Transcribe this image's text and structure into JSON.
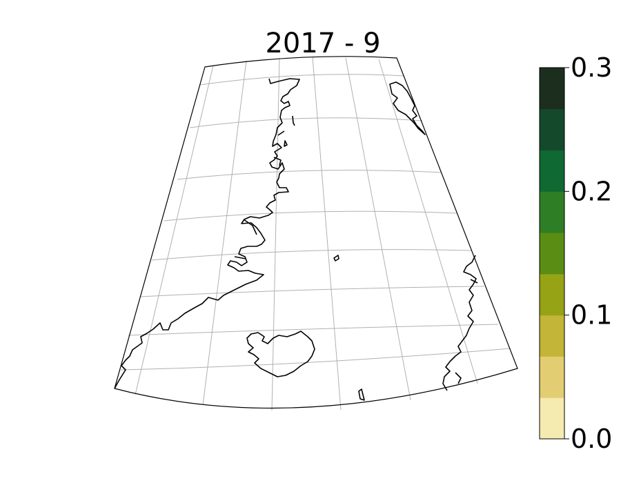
{
  "title": "2017 - 9",
  "colorbar": {
    "min": 0.0,
    "max": 0.3,
    "ticks": [
      {
        "value": 0.0,
        "label": "0.0"
      },
      {
        "value": 0.1,
        "label": "0.1"
      },
      {
        "value": 0.2,
        "label": "0.2"
      },
      {
        "value": 0.3,
        "label": "0.3"
      }
    ],
    "bins": [
      {
        "from": 0.0,
        "to": 0.0333,
        "color": "#f5ebb0"
      },
      {
        "from": 0.0333,
        "to": 0.0667,
        "color": "#e2cd72"
      },
      {
        "from": 0.0667,
        "to": 0.1,
        "color": "#c2b538"
      },
      {
        "from": 0.1,
        "to": 0.1333,
        "color": "#95a315"
      },
      {
        "from": 0.1333,
        "to": 0.1667,
        "color": "#5a8d14"
      },
      {
        "from": 0.1667,
        "to": 0.2,
        "color": "#2d7e24"
      },
      {
        "from": 0.2,
        "to": 0.2333,
        "color": "#0f6932"
      },
      {
        "from": 0.2333,
        "to": 0.2667,
        "color": "#15492c"
      },
      {
        "from": 0.2667,
        "to": 0.3,
        "color": "#1c2e1d"
      }
    ]
  },
  "map": {
    "projection": "conic",
    "gridlines": true,
    "region": "North Atlantic: Greenland east coast, Iceland, Faroe Islands, Norway coast",
    "data_field": "empty (no colored cells shown)"
  }
}
